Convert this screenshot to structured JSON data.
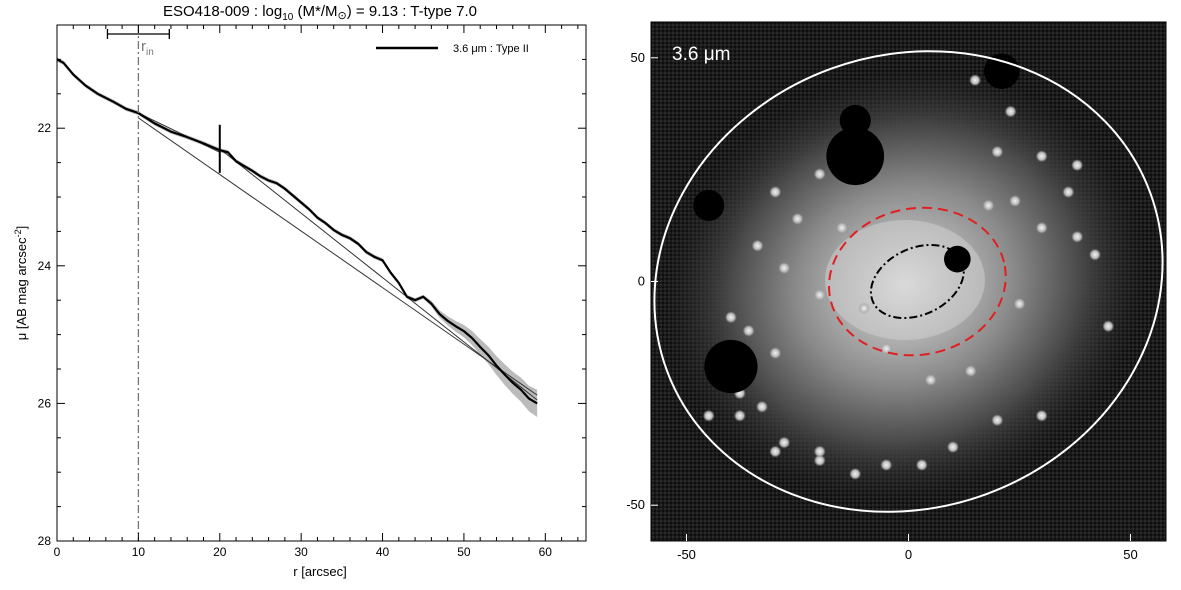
{
  "chart_data": [
    {
      "type": "line",
      "title": "ESO418-009 : log10 (M*/M⊙) = 9.13 : T-type 7.0",
      "title_parts": {
        "name": "ESO418-009 : log",
        "log_sub": "10",
        "mass": " (M*/M",
        "sun": "⊙",
        "rest": ") = 9.13 : T-type 7.0"
      },
      "xlabel": "r [arcsec]",
      "ylabel": "μ [AB mag arcsec",
      "ylabel_sup": "-2",
      "ylabel_end": "]",
      "xlim": [
        0,
        65
      ],
      "ylim": [
        28,
        20.5
      ],
      "y_inverted": true,
      "xticks": [
        0,
        10,
        20,
        30,
        40,
        50,
        60
      ],
      "yticks": [
        22,
        24,
        26,
        28
      ],
      "legend": {
        "label": "3.6 μm : Type II",
        "position": "top-right"
      },
      "annotations": {
        "r_in_label": "r",
        "r_in_sub": "in",
        "r_in": 10,
        "r_in_err": [
          6.2,
          13.8
        ],
        "break_r": 20,
        "break_mu": 22.3,
        "break_halfheight": 0.35
      },
      "series": [
        {
          "name": "3.6 μm : Type II",
          "x": [
            0,
            0.8,
            2,
            3.5,
            5,
            7,
            8.5,
            10,
            12,
            14,
            16,
            18,
            20,
            21,
            22,
            23,
            24,
            25,
            26,
            27,
            28,
            29,
            30,
            31,
            32,
            33,
            34,
            35,
            36,
            37,
            38,
            39,
            40,
            41,
            42,
            43,
            44,
            45,
            46,
            47,
            48,
            49,
            50,
            51,
            52,
            53,
            54,
            55,
            56,
            57,
            58,
            59
          ],
          "y": [
            21.0,
            21.05,
            21.22,
            21.38,
            21.5,
            21.62,
            21.72,
            21.78,
            21.93,
            22.05,
            22.13,
            22.22,
            22.32,
            22.35,
            22.48,
            22.55,
            22.62,
            22.7,
            22.76,
            22.8,
            22.88,
            22.98,
            23.08,
            23.18,
            23.3,
            23.38,
            23.48,
            23.55,
            23.6,
            23.68,
            23.8,
            23.87,
            23.92,
            24.1,
            24.25,
            24.45,
            24.5,
            24.45,
            24.55,
            24.7,
            24.8,
            24.88,
            24.95,
            25.05,
            25.18,
            25.3,
            25.45,
            25.58,
            25.7,
            25.8,
            25.93,
            26.0
          ]
        }
      ],
      "fits": [
        {
          "x": [
            10,
            20
          ],
          "y": [
            21.78,
            22.35
          ]
        },
        {
          "x": [
            10,
            59
          ],
          "y": [
            21.85,
            25.88
          ]
        },
        {
          "x": [
            20,
            59
          ],
          "y": [
            22.3,
            25.95
          ]
        }
      ]
    },
    {
      "type": "heatmap",
      "title": "3.6 μm",
      "xlim": [
        -58,
        58
      ],
      "ylim": [
        -58,
        58
      ],
      "xticks": [
        -50,
        0,
        50
      ],
      "yticks": [
        -50,
        0,
        50
      ],
      "ellipses": [
        {
          "name": "outer",
          "color": "#ffffff",
          "style": "solid",
          "center": [
            0,
            0
          ],
          "a": 58,
          "b": 51,
          "angle": 20
        },
        {
          "name": "middle",
          "color": "#e02020",
          "style": "dashed",
          "center": [
            2,
            0
          ],
          "a": 20,
          "b": 16.5,
          "angle": 10
        },
        {
          "name": "inner",
          "color": "#000000",
          "style": "dash-dot",
          "center": [
            2,
            0
          ],
          "a": 11,
          "b": 7.5,
          "angle": 25
        }
      ],
      "masks": [
        {
          "x": -12,
          "y": 36,
          "r": 3.5
        },
        {
          "x": -12,
          "y": 28,
          "r": 6.5
        },
        {
          "x": 21,
          "y": 47,
          "r": 4
        },
        {
          "x": -45,
          "y": 17,
          "r": 3.5
        },
        {
          "x": 11,
          "y": 5,
          "r": 3
        },
        {
          "x": -40,
          "y": -19,
          "r": 6
        }
      ]
    }
  ],
  "colors": {
    "profile": "#000000",
    "fit": "#333333",
    "band": "#bbbbbb",
    "r_in_line": "#777777",
    "outer_ellipse": "#ffffff",
    "mid_ellipse": "#e02020",
    "inner_ellipse": "#000000"
  }
}
